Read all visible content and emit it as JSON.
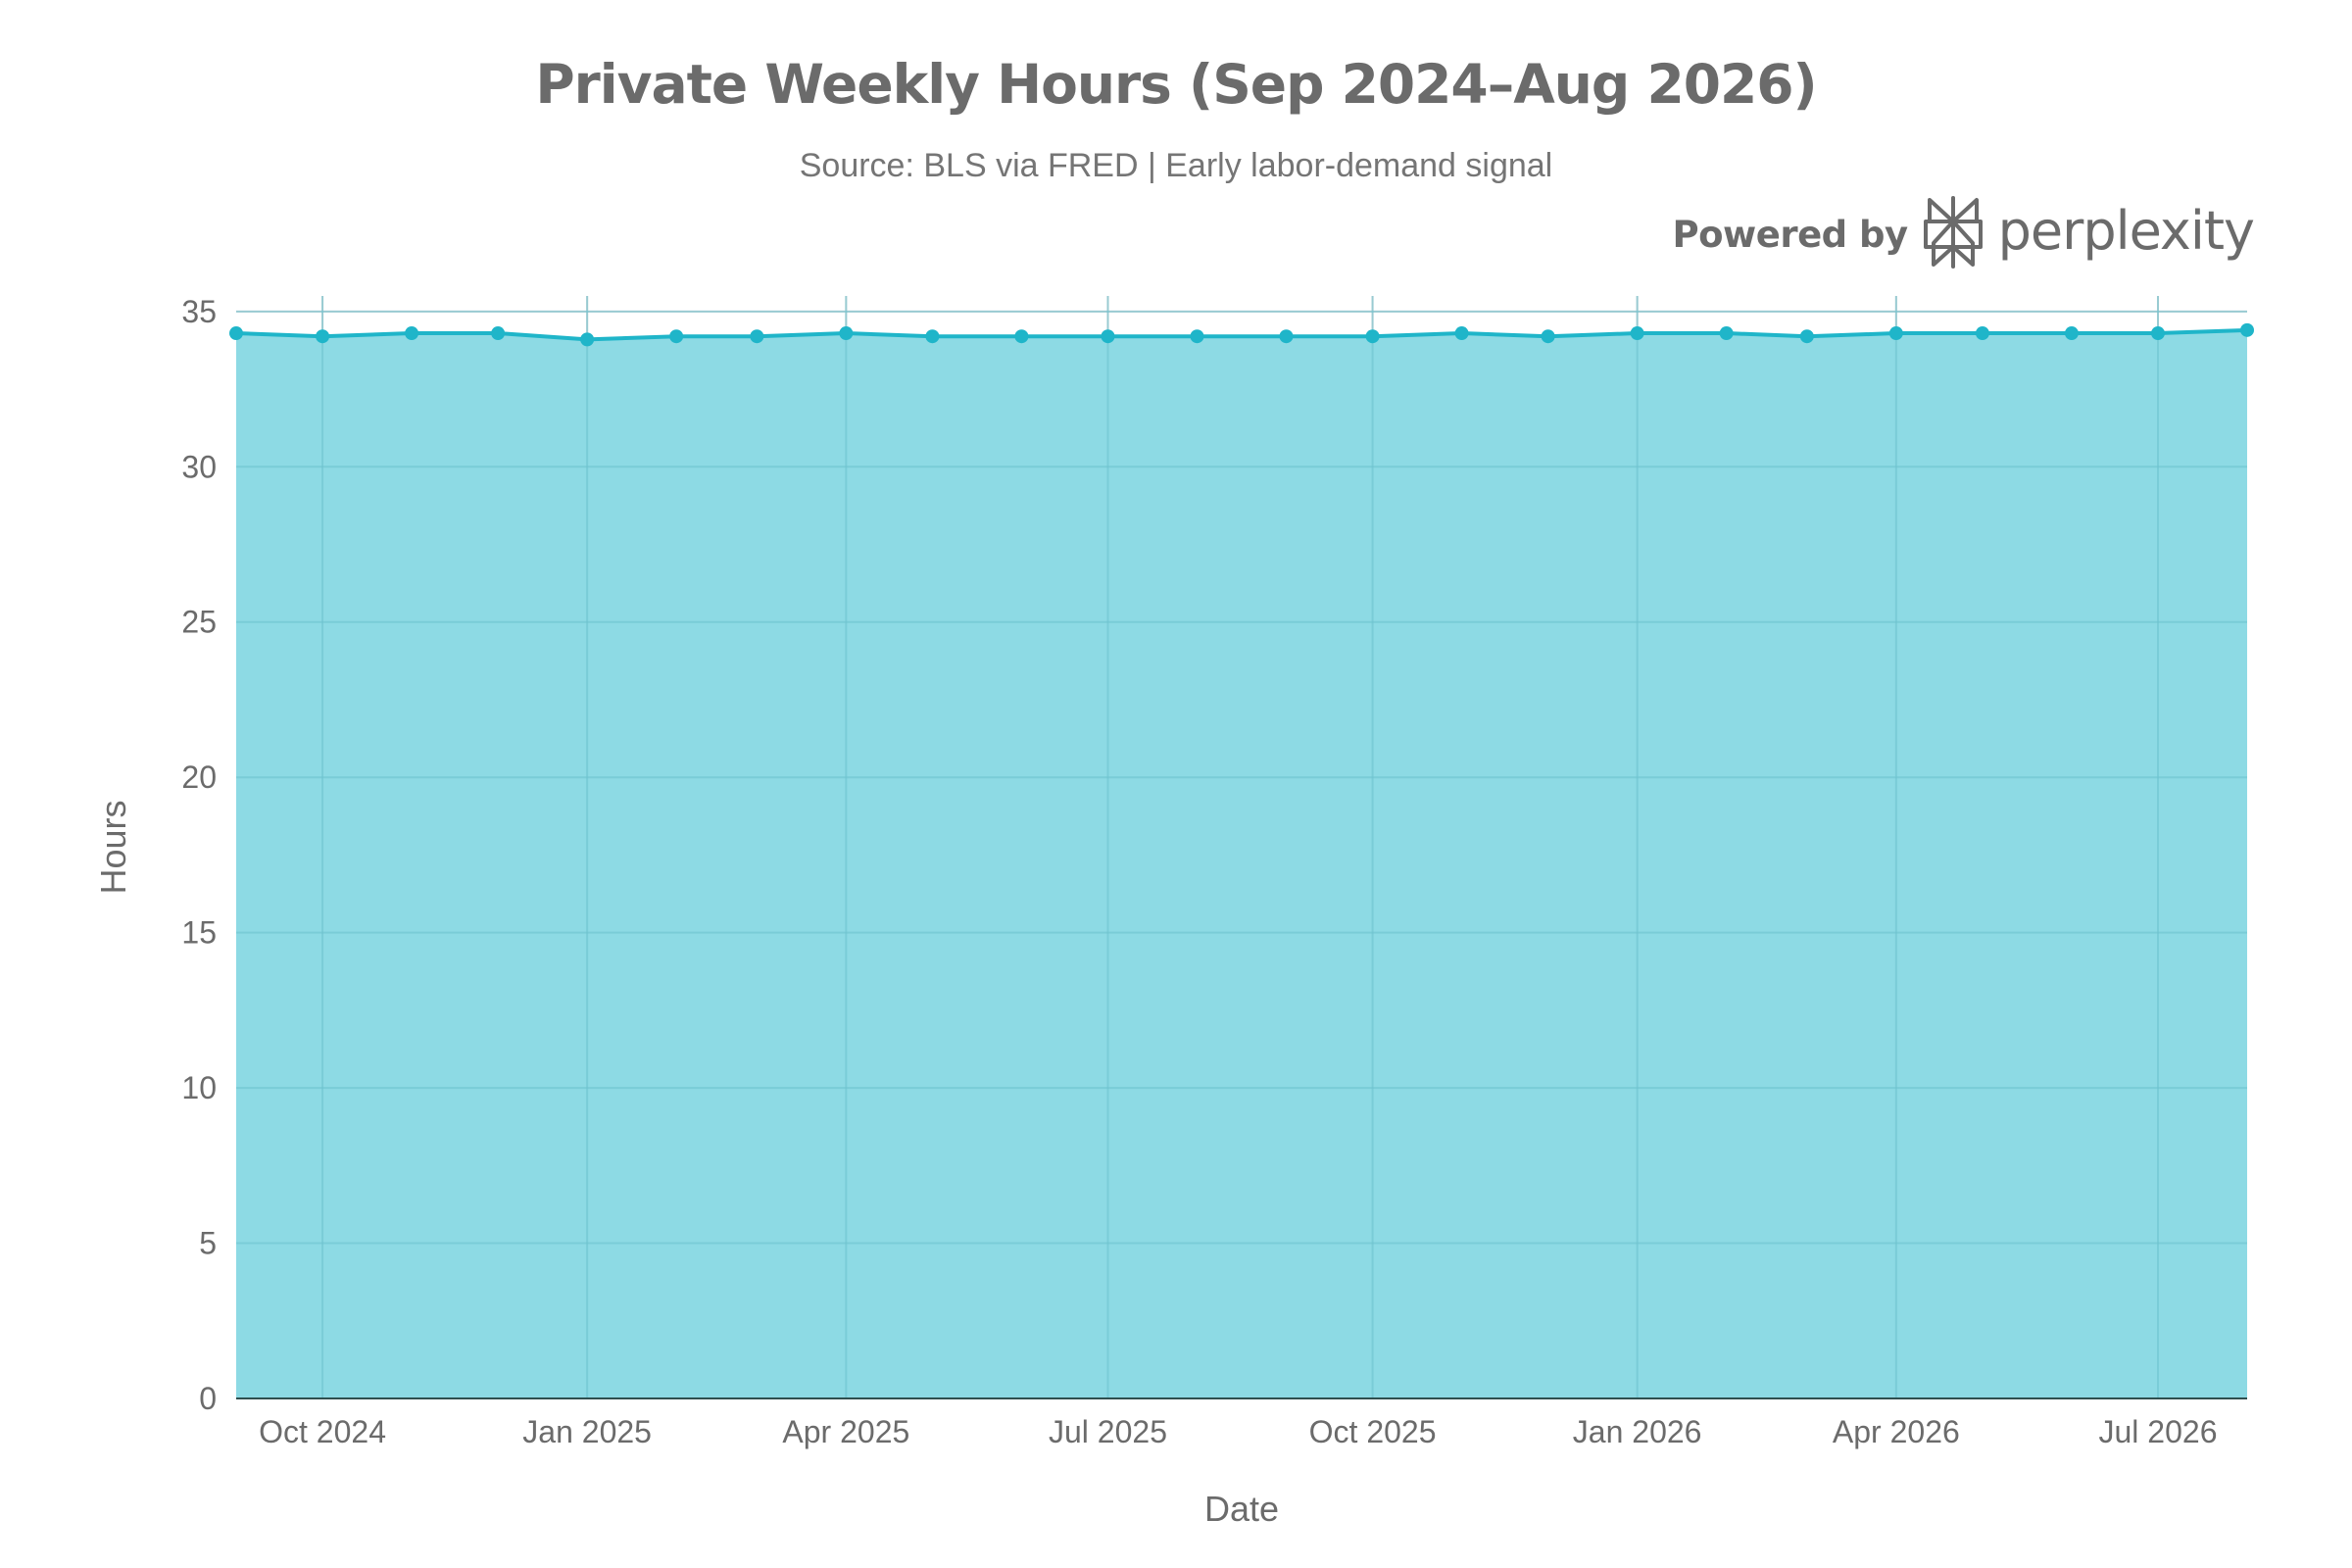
{
  "chart_data": {
    "type": "area",
    "title": "Private Weekly Hours (Sep 2024–Aug 2026)",
    "subtitle": "Source: BLS via FRED | Early labor-demand signal",
    "xlabel": "Date",
    "ylabel": "Hours",
    "ylim": [
      0,
      35.5
    ],
    "yticks": [
      0,
      5,
      10,
      15,
      20,
      25,
      30,
      35
    ],
    "xticks": [
      {
        "date": "2024-10-01",
        "label": "Oct 2024"
      },
      {
        "date": "2025-01-01",
        "label": "Jan 2025"
      },
      {
        "date": "2025-04-01",
        "label": "Apr 2025"
      },
      {
        "date": "2025-07-01",
        "label": "Jul 2025"
      },
      {
        "date": "2025-10-01",
        "label": "Oct 2025"
      },
      {
        "date": "2026-01-01",
        "label": "Jan 2026"
      },
      {
        "date": "2026-04-01",
        "label": "Apr 2026"
      },
      {
        "date": "2026-07-01",
        "label": "Jul 2026"
      }
    ],
    "xlim": [
      "2024-09-01",
      "2026-08-01"
    ],
    "grid": true,
    "legend": "none",
    "series": [
      {
        "x": [
          "2024-09-01",
          "2024-10-01",
          "2024-11-01",
          "2024-12-01",
          "2025-01-01",
          "2025-02-01",
          "2025-03-01",
          "2025-04-01",
          "2025-05-01",
          "2025-06-01",
          "2025-07-01",
          "2025-08-01",
          "2025-09-01",
          "2025-10-01",
          "2025-11-01",
          "2025-12-01",
          "2026-01-01",
          "2026-02-01",
          "2026-03-01",
          "2026-04-01",
          "2026-05-01",
          "2026-06-01",
          "2026-07-01",
          "2026-08-01"
        ],
        "values": [
          34.3,
          34.2,
          34.3,
          34.3,
          34.1,
          34.2,
          34.2,
          34.3,
          34.2,
          34.2,
          34.2,
          34.2,
          34.2,
          34.2,
          34.3,
          34.2,
          34.3,
          34.3,
          34.2,
          34.3,
          34.3,
          34.3,
          34.3,
          34.4
        ]
      }
    ],
    "colors": {
      "line": "#1fb5c9",
      "fill": "#8ddae4",
      "grid": "#d9d9d9",
      "text": "#6b6b6b"
    }
  },
  "branding": {
    "powered_by": "Powered by",
    "name": "perplexity",
    "icon": "perplexity-logo-icon"
  }
}
